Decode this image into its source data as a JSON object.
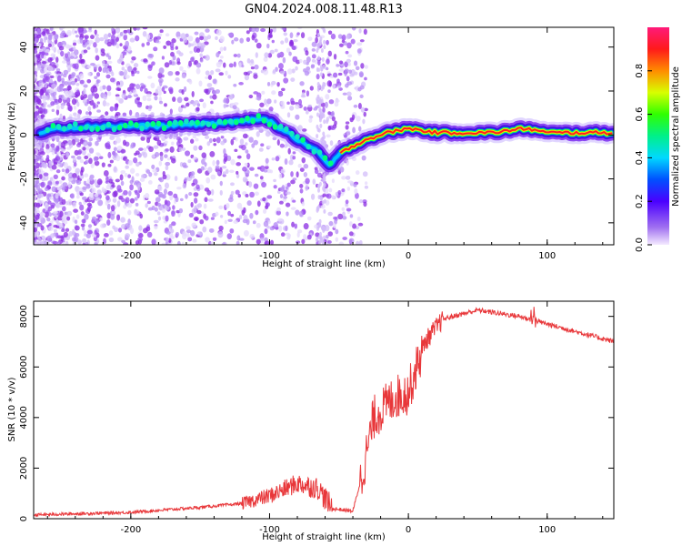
{
  "title": "GN04.2024.008.11.48.R13",
  "colors": {
    "snr_line": "#e8373a",
    "scatter_noise": "#8a2be2"
  },
  "chart_data": [
    {
      "type": "heatmap",
      "xlabel": "Height of straight line (km)",
      "ylabel": "Frequency (Hz)",
      "xlim": [
        -270,
        148
      ],
      "ylim": [
        -50,
        49
      ],
      "x_ticks": [
        -200,
        -100,
        0,
        100
      ],
      "y_ticks": [
        -40,
        -20,
        0,
        20,
        40
      ],
      "colorbar": {
        "label": "Normalized spectral amplitude",
        "ticks": [
          0.0,
          0.2,
          0.4,
          0.6,
          0.8
        ],
        "range": [
          0,
          1
        ],
        "colormap": "rainbow (purple → blue → cyan → green → yellow → red → magenta)"
      },
      "ridge": [
        {
          "x": -260,
          "y": 3
        },
        {
          "x": -220,
          "y": 4
        },
        {
          "x": -180,
          "y": 4
        },
        {
          "x": -150,
          "y": 5
        },
        {
          "x": -120,
          "y": 6
        },
        {
          "x": -105,
          "y": 8
        },
        {
          "x": -95,
          "y": 4
        },
        {
          "x": -80,
          "y": -2
        },
        {
          "x": -65,
          "y": -8
        },
        {
          "x": -57,
          "y": -14
        },
        {
          "x": -48,
          "y": -8
        },
        {
          "x": -40,
          "y": -5
        },
        {
          "x": -30,
          "y": -2
        },
        {
          "x": -15,
          "y": 1
        },
        {
          "x": 0,
          "y": 3
        },
        {
          "x": 20,
          "y": 1
        },
        {
          "x": 60,
          "y": 1
        },
        {
          "x": 85,
          "y": 3
        },
        {
          "x": 100,
          "y": 1
        },
        {
          "x": 148,
          "y": 1
        }
      ]
    },
    {
      "type": "line",
      "xlabel": "Height of straight line (km)",
      "ylabel": "SNR (10 * v/v)",
      "xlim": [
        -270,
        148
      ],
      "ylim": [
        0,
        8600
      ],
      "x_ticks": [
        -200,
        -100,
        0,
        100
      ],
      "y_ticks": [
        0,
        2000,
        4000,
        6000,
        8000
      ],
      "grid": false,
      "series_envelope": [
        {
          "x": -270,
          "y": 150
        },
        {
          "x": -200,
          "y": 250
        },
        {
          "x": -150,
          "y": 450
        },
        {
          "x": -120,
          "y": 600
        },
        {
          "x": -100,
          "y": 900
        },
        {
          "x": -80,
          "y": 1400
        },
        {
          "x": -65,
          "y": 1200
        },
        {
          "x": -55,
          "y": 400
        },
        {
          "x": -40,
          "y": 300
        },
        {
          "x": -33,
          "y": 1800
        },
        {
          "x": -25,
          "y": 4000
        },
        {
          "x": -10,
          "y": 4800
        },
        {
          "x": 0,
          "y": 5000
        },
        {
          "x": 12,
          "y": 7000
        },
        {
          "x": 25,
          "y": 7900
        },
        {
          "x": 50,
          "y": 8250
        },
        {
          "x": 80,
          "y": 8000
        },
        {
          "x": 100,
          "y": 7700
        },
        {
          "x": 148,
          "y": 7000
        }
      ]
    }
  ]
}
